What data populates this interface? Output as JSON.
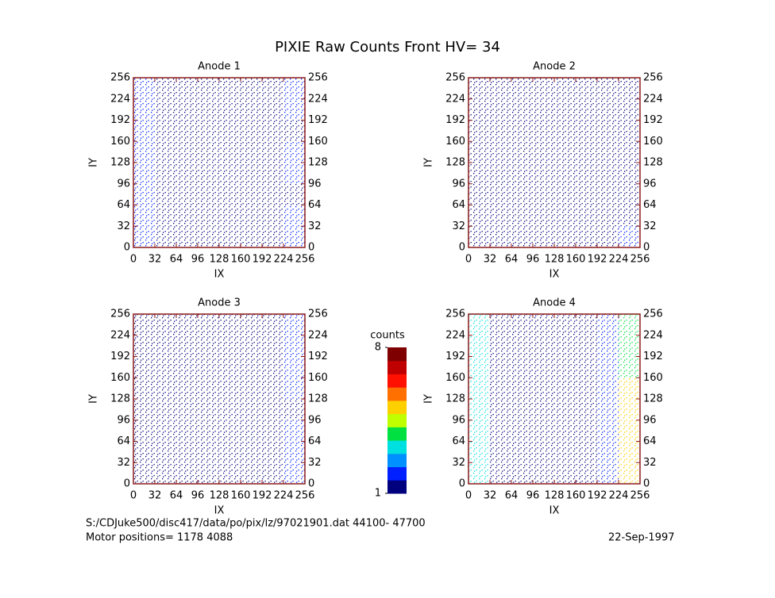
{
  "title": "PIXIE Raw Counts Front HV= 34",
  "colorbar": {
    "label": "counts",
    "lim": [
      1,
      8
    ],
    "ticks": [
      1,
      8
    ],
    "colors": [
      "#00007f",
      "#0020ff",
      "#0090ff",
      "#00e0e0",
      "#00e040",
      "#c0ff00",
      "#ffd000",
      "#ff7000",
      "#ff1000",
      "#c00000",
      "#7f0000"
    ]
  },
  "footer": {
    "file": "S:/CDJuke500/disc417/data/po/pix/lz/97021901.dat    44100-   47700",
    "motor": "Motor positions= 1178 4088",
    "date": "22-Sep-1997"
  },
  "chart_data": [
    {
      "type": "heatmap",
      "title": "Anode 1",
      "xlabel": "IX",
      "ylabel": "IY",
      "xlim": [
        0,
        256
      ],
      "ylim": [
        0,
        256
      ],
      "xticks": [
        0,
        32,
        64,
        96,
        128,
        160,
        192,
        224,
        256
      ],
      "yticks": [
        0,
        32,
        64,
        96,
        128,
        160,
        192,
        224,
        256
      ],
      "values": [
        [
          2,
          1,
          1,
          1,
          1,
          1,
          1,
          2
        ],
        [
          2,
          1,
          1,
          1,
          1,
          1,
          1,
          2
        ],
        [
          2,
          1,
          1,
          1,
          1,
          1,
          1,
          1
        ],
        [
          2,
          1,
          1,
          1,
          1,
          1,
          1,
          2
        ],
        [
          2,
          1,
          1,
          1,
          1,
          1,
          1,
          2
        ],
        [
          2,
          1,
          1,
          1,
          1,
          1,
          1,
          1
        ],
        [
          2,
          1,
          1,
          1,
          1,
          1,
          1,
          2
        ],
        [
          2,
          1,
          1,
          1,
          1,
          1,
          1,
          2
        ]
      ]
    },
    {
      "type": "heatmap",
      "title": "Anode 2",
      "xlabel": "IX",
      "ylabel": "IY",
      "xlim": [
        0,
        256
      ],
      "ylim": [
        0,
        256
      ],
      "xticks": [
        0,
        32,
        64,
        96,
        128,
        160,
        192,
        224,
        256
      ],
      "yticks": [
        0,
        32,
        64,
        96,
        128,
        160,
        192,
        224,
        256
      ],
      "values": [
        [
          1,
          1,
          1,
          1,
          1,
          1,
          1,
          2
        ],
        [
          1,
          1,
          1,
          1,
          1,
          1,
          1,
          1
        ],
        [
          1,
          1,
          1,
          1,
          1,
          1,
          1,
          1
        ],
        [
          1,
          1,
          1,
          1,
          1,
          1,
          1,
          1
        ],
        [
          1,
          1,
          1,
          1,
          1,
          1,
          1,
          1
        ],
        [
          1,
          1,
          1,
          1,
          1,
          1,
          1,
          1
        ],
        [
          1,
          1,
          1,
          1,
          1,
          1,
          1,
          1
        ],
        [
          1,
          1,
          1,
          1,
          1,
          1,
          1,
          1
        ]
      ]
    },
    {
      "type": "heatmap",
      "title": "Anode 3",
      "xlabel": "IX",
      "ylabel": "IY",
      "xlim": [
        0,
        256
      ],
      "ylim": [
        0,
        256
      ],
      "xticks": [
        0,
        32,
        64,
        96,
        128,
        160,
        192,
        224,
        256
      ],
      "yticks": [
        0,
        32,
        64,
        96,
        128,
        160,
        192,
        224,
        256
      ],
      "values": [
        [
          1,
          1,
          1,
          1,
          1,
          1,
          1,
          2
        ],
        [
          1,
          1,
          1,
          1,
          1,
          1,
          1,
          2
        ],
        [
          1,
          1,
          1,
          1,
          1,
          1,
          1,
          2
        ],
        [
          1,
          1,
          1,
          1,
          1,
          1,
          1,
          1
        ],
        [
          1,
          1,
          1,
          1,
          1,
          1,
          1,
          2
        ],
        [
          1,
          1,
          1,
          1,
          1,
          1,
          1,
          2
        ],
        [
          1,
          1,
          1,
          1,
          1,
          1,
          1,
          2
        ],
        [
          1,
          1,
          1,
          1,
          1,
          1,
          1,
          2
        ]
      ]
    },
    {
      "type": "heatmap",
      "title": "Anode 4",
      "xlabel": "IX",
      "ylabel": "IY",
      "xlim": [
        0,
        256
      ],
      "ylim": [
        0,
        256
      ],
      "xticks": [
        0,
        32,
        64,
        96,
        128,
        160,
        192,
        224,
        256
      ],
      "yticks": [
        0,
        32,
        64,
        96,
        128,
        160,
        192,
        224,
        256
      ],
      "values": [
        [
          3,
          1,
          1,
          1,
          1,
          1,
          2,
          5
        ],
        [
          3,
          1,
          1,
          1,
          1,
          1,
          2,
          5
        ],
        [
          3,
          1,
          1,
          1,
          1,
          1,
          2,
          5
        ],
        [
          3,
          1,
          1,
          1,
          1,
          1,
          2,
          5
        ],
        [
          3,
          1,
          1,
          1,
          1,
          1,
          2,
          5
        ],
        [
          3,
          1,
          1,
          1,
          1,
          1,
          2,
          4
        ],
        [
          3,
          1,
          1,
          1,
          1,
          1,
          2,
          4
        ],
        [
          3,
          1,
          1,
          1,
          1,
          1,
          2,
          4
        ]
      ]
    }
  ]
}
